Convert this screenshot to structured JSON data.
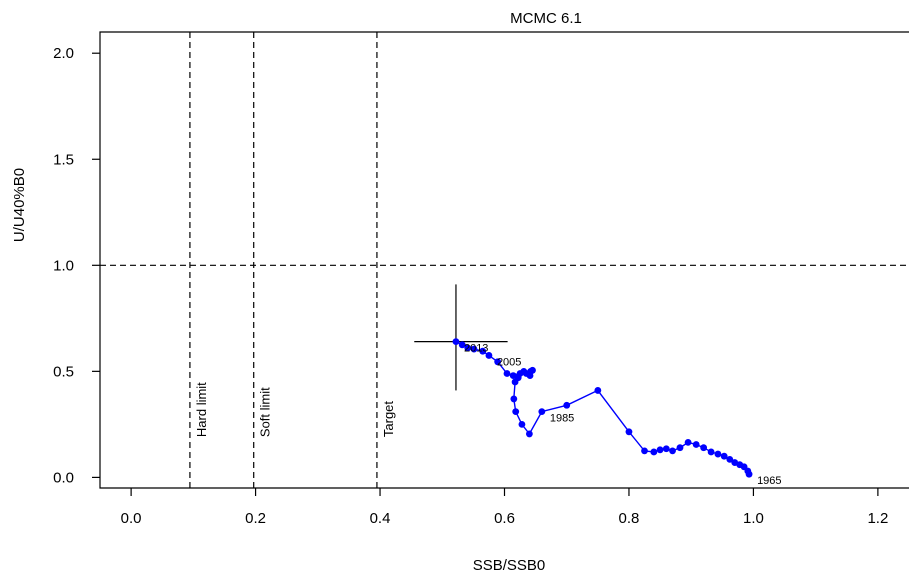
{
  "chart_data": {
    "type": "line",
    "title": "MCMC 6.1",
    "xlabel": "SSB/SSB0",
    "ylabel": "U/U40%B0",
    "xlim": [
      -0.05,
      1.25
    ],
    "ylim": [
      -0.05,
      2.1
    ],
    "xticks": [
      "0.0",
      "0.2",
      "0.4",
      "0.6",
      "0.8",
      "1.0",
      "1.2"
    ],
    "yticks": [
      "0.0",
      "0.5",
      "1.0",
      "1.5",
      "2.0"
    ],
    "grid": false,
    "series": [
      {
        "color": "#0000ff",
        "x": [
          0.993,
          0.991,
          0.985,
          0.978,
          0.97,
          0.962,
          0.953,
          0.943,
          0.932,
          0.92,
          0.908,
          0.895,
          0.882,
          0.87,
          0.86,
          0.85,
          0.84,
          0.825,
          0.8,
          0.75,
          0.7,
          0.66,
          0.64,
          0.628,
          0.618,
          0.615,
          0.617,
          0.622,
          0.625,
          0.635,
          0.642,
          0.645,
          0.641,
          0.631,
          0.614,
          0.604,
          0.589,
          0.575,
          0.565,
          0.551,
          0.541,
          0.532,
          0.522
        ],
        "y": [
          0.015,
          0.03,
          0.05,
          0.06,
          0.07,
          0.085,
          0.1,
          0.11,
          0.12,
          0.14,
          0.155,
          0.165,
          0.14,
          0.125,
          0.135,
          0.13,
          0.12,
          0.125,
          0.215,
          0.41,
          0.34,
          0.31,
          0.205,
          0.25,
          0.31,
          0.37,
          0.45,
          0.47,
          0.49,
          0.49,
          0.5,
          0.505,
          0.48,
          0.5,
          0.48,
          0.49,
          0.545,
          0.575,
          0.595,
          0.605,
          0.61,
          0.625,
          0.64
        ]
      }
    ],
    "year_labels": [
      {
        "text": "1965",
        "x": 0.993,
        "y": 0.015
      },
      {
        "text": "1985",
        "x": 0.66,
        "y": 0.31
      },
      {
        "text": "2005",
        "x": 0.575,
        "y": 0.575
      },
      {
        "text": "2013",
        "x": 0.522,
        "y": 0.64
      }
    ],
    "reference_lines": {
      "vertical": [
        {
          "x": 0.0945,
          "label": "Hard limit"
        },
        {
          "x": 0.197,
          "label": "Soft limit"
        },
        {
          "x": 0.395,
          "label": "Target"
        }
      ],
      "horizontal": [
        {
          "y": 1.0
        }
      ]
    },
    "credibility_interval": {
      "x_point": 0.522,
      "y_point": 0.64,
      "x_range": [
        0.455,
        0.605
      ],
      "y_range": [
        0.41,
        0.91
      ]
    }
  }
}
